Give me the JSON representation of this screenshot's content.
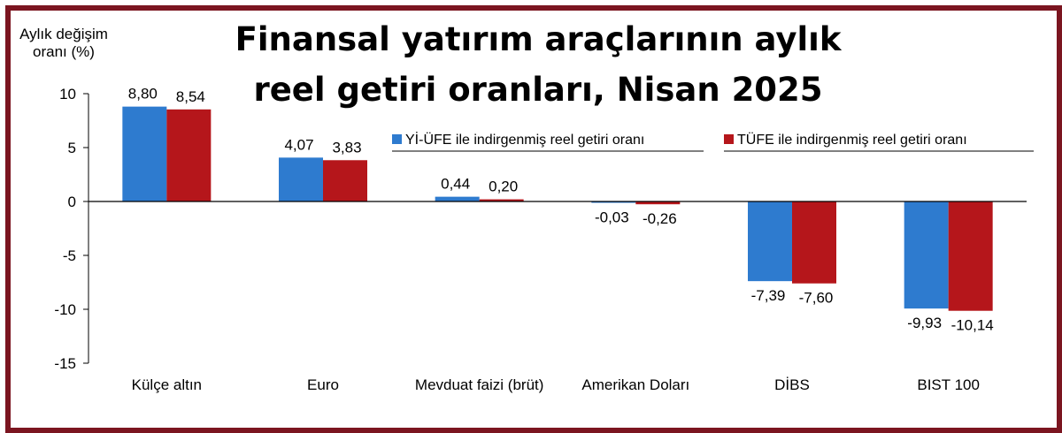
{
  "chart_data": {
    "type": "bar",
    "title_lines": [
      "Finansal yatırım araçlarının aylık",
      "reel getiri oranları, Nisan 2025"
    ],
    "ylabel_lines": [
      "Aylık değişim",
      "oranı (%)"
    ],
    "xlabel": "",
    "ylim": [
      -15,
      10
    ],
    "yticks": [
      10,
      5,
      0,
      -5,
      -10,
      -15
    ],
    "grid": false,
    "legend_placement": "top-right",
    "categories": [
      "Külçe altın",
      "Euro",
      "Mevduat faizi (brüt)",
      "Amerikan Doları",
      "DİBS",
      "BIST 100"
    ],
    "series": [
      {
        "name": "Yİ-ÜFE ile indirgenmiş reel getiri oranı",
        "color": "#2e7bcf",
        "values": [
          8.8,
          4.07,
          0.44,
          -0.03,
          -7.39,
          -9.93
        ],
        "labels": [
          "8,80",
          "4,07",
          "0,44",
          "-0,03",
          "-7,39",
          "-9,93"
        ]
      },
      {
        "name": "TÜFE ile indirgenmiş reel getiri oranı",
        "color": "#b5161b",
        "values": [
          8.54,
          3.83,
          0.2,
          -0.26,
          -7.6,
          -10.14
        ],
        "labels": [
          "8,54",
          "3,83",
          "0,20",
          "-0,26",
          "-7,60",
          "-10,14"
        ]
      }
    ]
  },
  "frame_color": "#7b1520"
}
